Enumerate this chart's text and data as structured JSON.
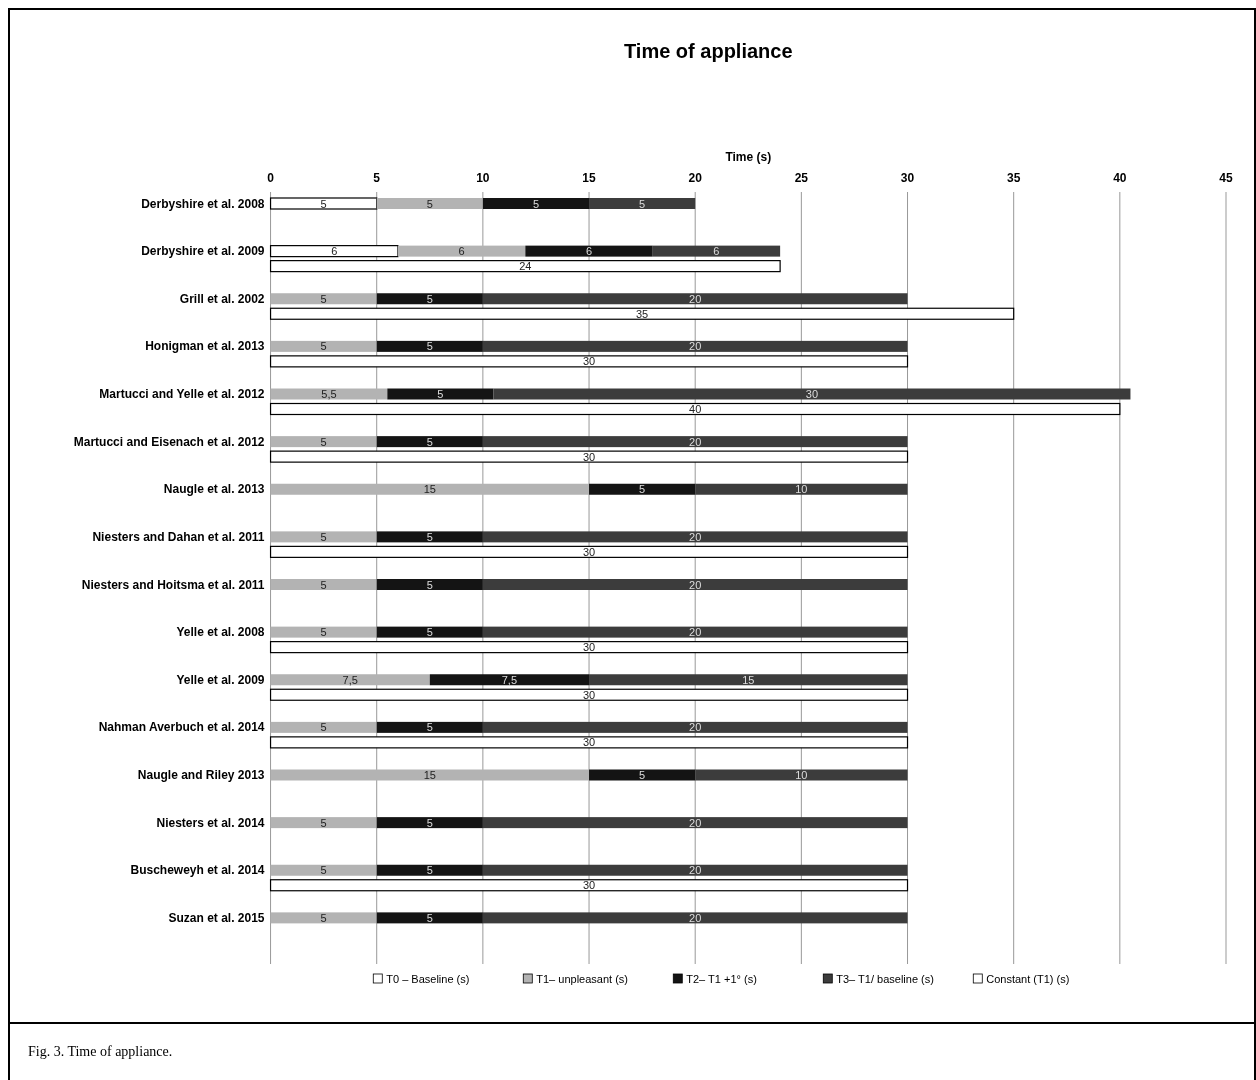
{
  "chart_data": [
    {
      "type": "bar",
      "orientation": "horizontal",
      "stacked": true,
      "title": "Time of appliance",
      "xlabel": "Time (s)",
      "categories": [
        "Derbyshire et al. 2008",
        "Derbyshire et al. 2009",
        "Grill et al. 2002",
        "Honigman et al. 2013",
        "Martucci and Yelle et al. 2012",
        "Martucci and Eisenach et al. 2012",
        "Naugle et al. 2013",
        "Niesters and Dahan et al. 2011",
        "Niesters and Hoitsma et al. 2011",
        "Yelle et al. 2008",
        "Yelle et al. 2009",
        "Nahman Averbuch et al. 2014",
        "Naugle and Riley 2013",
        "Niesters et al. 2014",
        "Buscheweyh et al. 2014",
        "Suzan et al. 2015"
      ],
      "series": [
        {
          "name": "T0 – Baseline (s)",
          "color": "#ffffff",
          "values": [
            5,
            6,
            null,
            null,
            null,
            null,
            null,
            null,
            null,
            null,
            null,
            null,
            null,
            null,
            null,
            null
          ],
          "value_labels": [
            "5",
            "6",
            null,
            null,
            null,
            null,
            null,
            null,
            null,
            null,
            null,
            null,
            null,
            null,
            null,
            null
          ]
        },
        {
          "name": "T1– unpleasant (s)",
          "color": "#b3b3b3",
          "values": [
            5,
            6,
            5,
            5,
            5.5,
            5,
            15,
            5,
            5,
            5,
            7.5,
            5,
            15,
            5,
            5,
            5
          ],
          "value_labels": [
            "5",
            "6",
            "5",
            "5",
            "5,5",
            "5",
            "15",
            "5",
            "5",
            "5",
            "7,5",
            "5",
            "15",
            "5",
            "5",
            "5"
          ]
        },
        {
          "name": "T2– T1 +1° (s)",
          "color": "#141414",
          "values": [
            5,
            6,
            5,
            5,
            5,
            5,
            5,
            5,
            5,
            5,
            7.5,
            5,
            5,
            5,
            5,
            5
          ],
          "value_labels": [
            "5",
            "6",
            "5",
            "5",
            "5",
            "5",
            "5",
            "5",
            "5",
            "5",
            "7,5",
            "5",
            "5",
            "5",
            "5",
            "5"
          ]
        },
        {
          "name": "T3– T1/ baseline (s)",
          "color": "#3c3c3c",
          "values": [
            5,
            6,
            20,
            20,
            30,
            20,
            10,
            20,
            20,
            20,
            15,
            20,
            10,
            20,
            20,
            20
          ],
          "value_labels": [
            "5",
            "6",
            "20",
            "20",
            "30",
            "20",
            "10",
            "20",
            "20",
            "20",
            "15",
            "20",
            "10",
            "20",
            "20",
            "20"
          ]
        }
      ],
      "xlim": [
        0,
        45
      ],
      "xticks": [
        0,
        5,
        10,
        15,
        20,
        25,
        30,
        35,
        40,
        45
      ],
      "grid": "x",
      "legend": "bottom",
      "annotations": [
        "Fig. 3. Time of appliance."
      ]
    },
    {
      "type": "bar",
      "orientation": "horizontal",
      "categories": [
        null,
        null,
        null,
        null,
        null,
        null,
        null,
        null,
        null,
        null,
        null,
        null,
        null,
        null,
        null,
        null
      ],
      "series": [
        {
          "name": "Constant (T1) (s)",
          "color": "#ffffff",
          "values": [
            null,
            24,
            35,
            30,
            40,
            30,
            null,
            30,
            null,
            30,
            30,
            30,
            null,
            null,
            30,
            null
          ],
          "value_labels": [
            null,
            "24",
            "35",
            "30",
            "40",
            "30",
            null,
            "30",
            null,
            "30",
            "30",
            "30",
            null,
            null,
            "30",
            null
          ]
        }
      ],
      "xlim": [
        0,
        45
      ],
      "xticks": [
        0,
        5,
        10,
        15,
        20,
        25,
        30,
        35,
        40,
        45
      ],
      "tick_labels": false,
      "legend": "bottom"
    }
  ]
}
